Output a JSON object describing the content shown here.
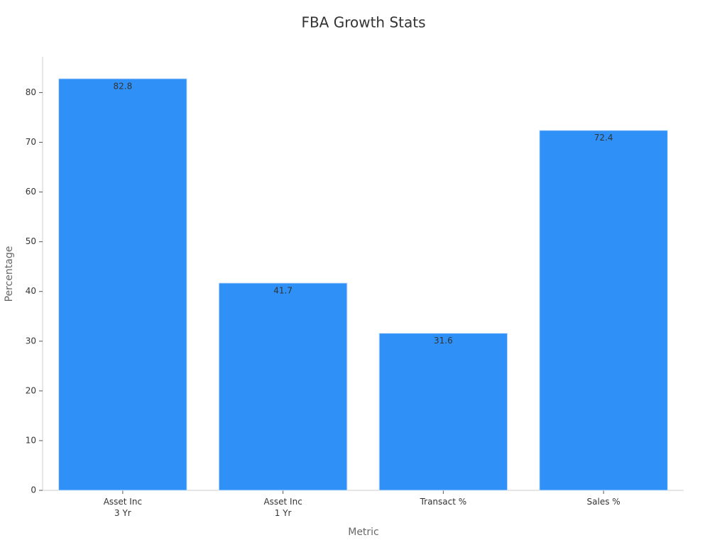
{
  "chart_data": {
    "type": "bar",
    "title": "FBA Growth Stats",
    "x_label": "Metric",
    "y_label": "Percentage",
    "categories": [
      "Asset Inc\n3 Yr",
      "Asset Inc\n1 Yr",
      "Transact %",
      "Sales %"
    ],
    "values": [
      82.8,
      41.7,
      31.6,
      72.4
    ],
    "color": "#2f91f7",
    "ylim": [
      0,
      87.2
    ],
    "yticks": [
      0,
      10,
      20,
      30,
      40,
      50,
      60,
      70,
      80
    ],
    "grid": false
  }
}
